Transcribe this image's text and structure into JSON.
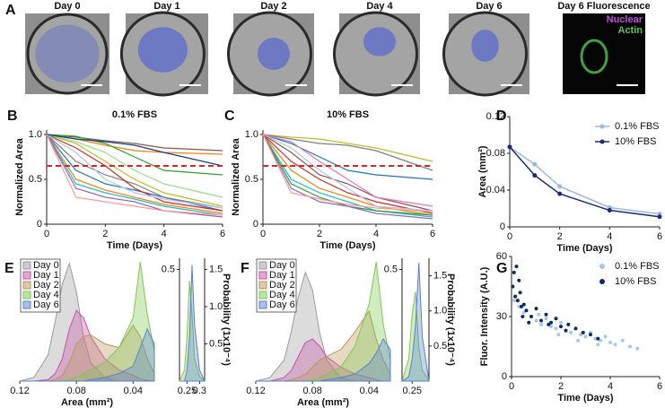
{
  "image_panel": {
    "panel": "A",
    "captions": [
      "Day 0",
      "Day 1",
      "Day 2",
      "Day 4",
      "Day 6",
      "Day 6 Fluorescence"
    ],
    "stain_labels": [
      "Nuclear",
      "Actin"
    ],
    "stain_colors": [
      "#c04ce0",
      "#4ec850"
    ]
  },
  "chart_data": [
    {
      "panel": "B",
      "type": "line",
      "title": "0.1% FBS",
      "xlabel": "Time (Days)",
      "ylabel": "Normalized Area",
      "x": [
        0,
        1,
        2,
        3,
        4,
        6
      ],
      "xlim": [
        0,
        6
      ],
      "ylim": [
        0,
        1.05
      ],
      "xticks": [
        0,
        2,
        4,
        6
      ],
      "yticks": [
        0,
        0.5,
        {
          "value": 1,
          "label": "1.0"
        }
      ],
      "threshold": 0.65,
      "threshold_color": "#d62728",
      "series": [
        {
          "color": "#8c564b",
          "values": [
            1,
            0.97,
            0.93,
            0.9,
            0.85,
            0.82
          ]
        },
        {
          "color": "#ff7f0e",
          "values": [
            1,
            0.95,
            0.88,
            0.82,
            0.8,
            0.78
          ]
        },
        {
          "color": "#2ca02c",
          "values": [
            1,
            0.98,
            0.9,
            0.75,
            0.6,
            0.55
          ]
        },
        {
          "color": "#bcbd22",
          "values": [
            1,
            0.9,
            0.7,
            0.5,
            0.35,
            0.2
          ]
        },
        {
          "color": "#1f77b4",
          "values": [
            1,
            0.6,
            0.45,
            0.38,
            0.3,
            0.15
          ]
        },
        {
          "color": "#ff7f0e",
          "values": [
            1,
            0.5,
            0.38,
            0.3,
            0.22,
            0.12
          ]
        },
        {
          "color": "#17becf",
          "values": [
            1,
            0.45,
            0.35,
            0.28,
            0.2,
            0.1
          ]
        },
        {
          "color": "#7f7f7f",
          "values": [
            1,
            0.7,
            0.55,
            0.45,
            0.3,
            0.18
          ]
        },
        {
          "color": "#d62728",
          "values": [
            1,
            0.85,
            0.65,
            0.4,
            0.25,
            0.15
          ]
        },
        {
          "color": "#9467bd",
          "values": [
            1,
            0.4,
            0.3,
            0.25,
            0.15,
            0.08
          ]
        },
        {
          "color": "#98df8a",
          "values": [
            1,
            0.92,
            0.8,
            0.6,
            0.45,
            0.3
          ]
        },
        {
          "color": "#aec7e8",
          "values": [
            1,
            0.8,
            0.5,
            0.35,
            0.28,
            0.18
          ]
        },
        {
          "color": "#1a3a8a",
          "values": [
            1,
            0.95,
            0.92,
            0.88,
            0.8,
            0.65
          ]
        },
        {
          "color": "#ff9896",
          "values": [
            1,
            0.3,
            0.25,
            0.2,
            0.15,
            0.1
          ]
        }
      ]
    },
    {
      "panel": "C",
      "type": "line",
      "title": "10% FBS",
      "xlabel": "Time (Days)",
      "ylabel": "Normalized Area",
      "x": [
        0,
        1,
        2,
        3,
        4,
        6
      ],
      "xlim": [
        0,
        6
      ],
      "ylim": [
        0,
        1.05
      ],
      "xticks": [
        0,
        2,
        4,
        6
      ],
      "yticks": [
        0,
        0.5,
        {
          "value": 1,
          "label": "1.0"
        }
      ],
      "threshold": 0.65,
      "threshold_color": "#d62728",
      "series": [
        {
          "color": "#bcbd22",
          "values": [
            1,
            0.97,
            0.95,
            0.9,
            0.85,
            0.7
          ]
        },
        {
          "color": "#7f7f7f",
          "values": [
            1,
            0.95,
            0.9,
            0.88,
            0.82,
            0.6
          ]
        },
        {
          "color": "#1f77b4",
          "values": [
            1,
            0.9,
            0.75,
            0.6,
            0.55,
            0.5
          ]
        },
        {
          "color": "#8c564b",
          "values": [
            1,
            0.8,
            0.55,
            0.45,
            0.3,
            0.15
          ]
        },
        {
          "color": "#ff7f0e",
          "values": [
            1,
            0.6,
            0.4,
            0.3,
            0.2,
            0.1
          ]
        },
        {
          "color": "#17becf",
          "values": [
            1,
            0.5,
            0.35,
            0.25,
            0.15,
            0.08
          ]
        },
        {
          "color": "#2ca02c",
          "values": [
            1,
            0.45,
            0.3,
            0.2,
            0.15,
            0.1
          ]
        },
        {
          "color": "#d62728",
          "values": [
            1,
            0.7,
            0.5,
            0.35,
            0.25,
            0.12
          ]
        },
        {
          "color": "#9467bd",
          "values": [
            1,
            0.4,
            0.25,
            0.2,
            0.12,
            0.06
          ]
        },
        {
          "color": "#aec7e8",
          "values": [
            1,
            0.85,
            0.6,
            0.4,
            0.2,
            0.15
          ]
        },
        {
          "color": "#e377c2",
          "values": [
            1,
            0.92,
            0.7,
            0.5,
            0.3,
            0.2
          ]
        },
        {
          "color": "#ff9896",
          "values": [
            1,
            0.35,
            0.28,
            0.22,
            0.18,
            0.14
          ]
        }
      ]
    },
    {
      "panel": "D",
      "type": "line",
      "xlabel": "Time (Days)",
      "ylabel": "Area (mm²)",
      "markers": true,
      "legend": "upper right",
      "x": [
        0,
        1,
        2,
        4,
        6
      ],
      "xlim": [
        0,
        6
      ],
      "ylim": [
        0,
        0.12
      ],
      "xticks": [
        0,
        2,
        4,
        6
      ],
      "yticks": [
        0,
        0.04,
        0.08,
        0.12
      ],
      "series": [
        {
          "name": "0.1% FBS",
          "color": "#9ab8e0",
          "values": [
            0.087,
            0.068,
            0.044,
            0.021,
            0.014
          ]
        },
        {
          "name": "10% FBS",
          "color": "#1b2a7a",
          "values": [
            0.087,
            0.056,
            0.036,
            0.018,
            0.011
          ]
        }
      ]
    },
    {
      "panel": "E",
      "type": "area",
      "xlabel": "Area (mm²)",
      "y2label": "Probability (1x10⁻⁴)",
      "legend": "upper left",
      "x": [
        0.12,
        0.11,
        0.1,
        0.095,
        0.09,
        0.085,
        0.08,
        0.075,
        0.07,
        0.06,
        0.05,
        0.04,
        0.035,
        0.03,
        0.025
      ],
      "xlim": [
        0.12,
        0.025
      ],
      "xticks": [
        0.12,
        0.08,
        0.04
      ],
      "y2lim": [
        0,
        1.65
      ],
      "y2ticks": [
        0.5,
        {
          "value": 1,
          "label": "1.0"
        },
        1.5
      ],
      "series": [
        {
          "name": "Day 0",
          "color": "#9a9a9a",
          "axis": "y2",
          "values": [
            0,
            0.05,
            0.35,
            0.8,
            1.3,
            1.58,
            1.2,
            0.6,
            0.25,
            0.05,
            0,
            0,
            0,
            0,
            0
          ]
        },
        {
          "name": "Day 1",
          "color": "#c850a8",
          "axis": "y2",
          "values": [
            0,
            0,
            0.02,
            0.1,
            0.3,
            0.7,
            0.95,
            0.85,
            0.6,
            0.3,
            0.15,
            0.08,
            0.03,
            0.01,
            0
          ]
        },
        {
          "name": "Day 2",
          "color": "#b8965a",
          "axis": "y2",
          "values": [
            0,
            0,
            0,
            0.02,
            0.08,
            0.25,
            0.5,
            0.6,
            0.62,
            0.5,
            0.45,
            0.75,
            0.6,
            0.3,
            0.1
          ]
        },
        {
          "name": "Day 4",
          "color": "#7ec850",
          "axis": "y2",
          "values": [
            0,
            0,
            0,
            0,
            0,
            0.02,
            0.05,
            0.1,
            0.15,
            0.25,
            0.45,
            0.85,
            1.6,
            0.9,
            0.4
          ]
        },
        {
          "name": "Day 6",
          "color": "#5a80d0",
          "axis": "y2",
          "values": [
            0,
            0,
            0,
            0,
            0,
            0,
            0,
            0,
            0.02,
            0.05,
            0.1,
            0.2,
            0.45,
            0.7,
            0.5
          ]
        }
      ],
      "inset": {
        "type": "area",
        "x": [
          0.22,
          0.24,
          0.25,
          0.26,
          0.27,
          0.28,
          0.3,
          0.32
        ],
        "xlim": [
          0.22,
          0.32
        ],
        "ylim": [
          0,
          0.55
        ],
        "xticks": [
          0.25,
          0.3
        ],
        "yticks": [
          0.5
        ],
        "series": [
          {
            "color": "#7ec850",
            "values": [
              0,
              0.05,
              0.2,
              0.45,
              0.3,
              0.1,
              0.02,
              0
            ]
          },
          {
            "color": "#5a80d0",
            "values": [
              0,
              0,
              0.05,
              0.2,
              0.52,
              0.25,
              0.05,
              0
            ]
          }
        ]
      }
    },
    {
      "panel": "F",
      "type": "area",
      "xlabel": "Area (mm²)",
      "y2label": "Probability (1x10⁻⁴)",
      "legend": "upper left",
      "x": [
        0.12,
        0.11,
        0.1,
        0.095,
        0.09,
        0.085,
        0.08,
        0.075,
        0.07,
        0.06,
        0.05,
        0.04,
        0.035,
        0.03,
        0.025
      ],
      "xlim": [
        0.12,
        0.025
      ],
      "xticks": [
        0.12,
        0.08,
        0.04
      ],
      "y2lim": [
        0,
        1.75
      ],
      "y2ticks": [
        0.5,
        {
          "value": 1,
          "label": "1.0"
        },
        1.5
      ],
      "series": [
        {
          "name": "Day 0",
          "color": "#9a9a9a",
          "axis": "y2",
          "values": [
            0,
            0.05,
            0.3,
            0.7,
            1.2,
            1.55,
            1.3,
            0.7,
            0.3,
            0.05,
            0,
            0,
            0,
            0,
            0
          ]
        },
        {
          "name": "Day 1",
          "color": "#c850a8",
          "axis": "y2",
          "values": [
            0,
            0,
            0.05,
            0.15,
            0.35,
            0.55,
            0.6,
            0.5,
            0.35,
            0.2,
            0.1,
            0.05,
            0.02,
            0,
            0
          ]
        },
        {
          "name": "Day 2",
          "color": "#b8965a",
          "axis": "y2",
          "values": [
            0,
            0,
            0,
            0.02,
            0.05,
            0.1,
            0.2,
            0.3,
            0.35,
            0.45,
            0.7,
            1.0,
            0.6,
            0.3,
            0.1
          ]
        },
        {
          "name": "Day 4",
          "color": "#7ec850",
          "axis": "y2",
          "values": [
            0,
            0,
            0,
            0,
            0,
            0,
            0.02,
            0.05,
            0.1,
            0.2,
            0.5,
            1.1,
            1.7,
            0.8,
            0.3
          ]
        },
        {
          "name": "Day 6",
          "color": "#5a80d0",
          "axis": "y2",
          "values": [
            0,
            0,
            0,
            0,
            0,
            0,
            0,
            0,
            0.02,
            0.05,
            0.1,
            0.25,
            0.4,
            0.6,
            0.45
          ]
        }
      ],
      "inset": {
        "type": "area",
        "x": [
          0.22,
          0.24,
          0.25,
          0.26,
          0.27,
          0.28,
          0.3
        ],
        "xlim": [
          0.22,
          0.3
        ],
        "ylim": [
          0,
          0.55
        ],
        "xticks": [
          0.25
        ],
        "yticks": [
          0.5
        ],
        "series": [
          {
            "color": "#7ec850",
            "values": [
              0,
              0.1,
              0.3,
              0.4,
              0.15,
              0.05,
              0
            ]
          },
          {
            "color": "#5a80d0",
            "values": [
              0,
              0.02,
              0.1,
              0.25,
              0.53,
              0.2,
              0
            ]
          }
        ]
      }
    },
    {
      "panel": "G",
      "type": "scatter",
      "xlabel": "Time (Days)",
      "ylabel": "Fluor. Intensity (A.U.)",
      "legend": "upper right",
      "xlim": [
        0,
        6
      ],
      "ylim": [
        0,
        60
      ],
      "xticks": [
        0,
        2,
        4,
        6
      ],
      "yticks": [
        0,
        30,
        60
      ],
      "series": [
        {
          "name": "0.1% FBS",
          "color": "#a6c8ea",
          "x": [
            0.1,
            0.3,
            0.5,
            0.8,
            1.0,
            1.2,
            1.4,
            1.6,
            1.8,
            2.0,
            2.2,
            2.4,
            2.6,
            2.8,
            3.0,
            3.2,
            3.4,
            3.6,
            3.8,
            4.0,
            4.2,
            4.5,
            4.8,
            5.1,
            1.1,
            1.9,
            2.7,
            3.5
          ],
          "values": [
            38,
            35,
            32,
            30,
            28,
            26,
            29,
            25,
            24,
            27,
            23,
            22,
            24,
            21,
            20,
            22,
            19,
            18,
            20,
            17,
            16,
            18,
            15,
            14,
            31,
            21,
            18,
            16
          ]
        },
        {
          "name": "10% FBS",
          "color": "#0b2a6b",
          "x": [
            0.05,
            0.1,
            0.15,
            0.2,
            0.25,
            0.3,
            0.35,
            0.4,
            0.5,
            0.6,
            0.8,
            1.0,
            1.2,
            1.4,
            1.6,
            1.8,
            2.0,
            2.3,
            2.6,
            2.9,
            3.2,
            3.5,
            0.45,
            0.7,
            1.5,
            2.2
          ],
          "values": [
            45,
            52,
            40,
            55,
            38,
            48,
            42,
            35,
            36,
            33,
            30,
            34,
            28,
            31,
            27,
            29,
            25,
            26,
            24,
            22,
            21,
            19,
            30,
            27,
            26,
            23
          ]
        }
      ]
    }
  ]
}
